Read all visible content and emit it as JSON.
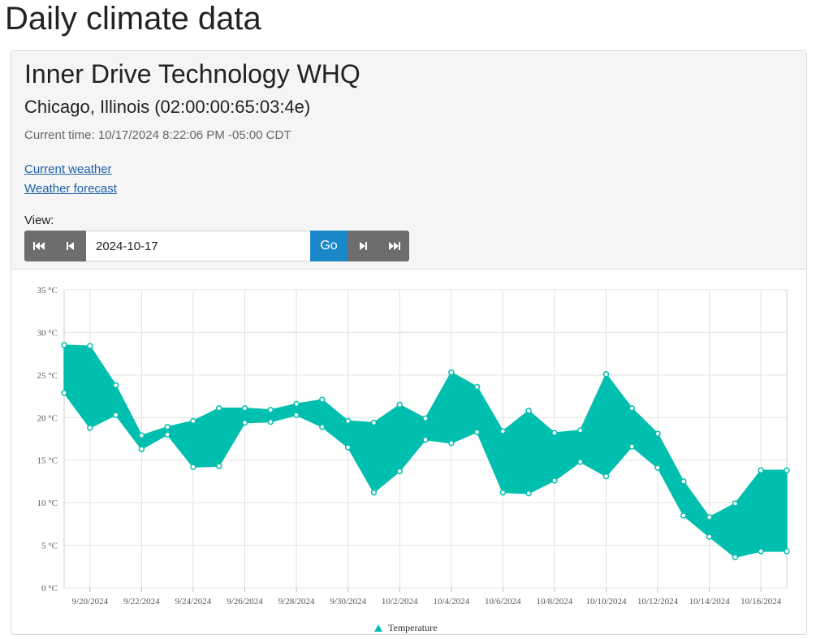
{
  "page": {
    "title": "Daily climate data"
  },
  "station": {
    "name": "Inner Drive Technology WHQ",
    "location": "Chicago, Illinois (02:00:00:65:03:4e)",
    "current_time": "Current time: 10/17/2024 8:22:06 PM -05:00 CDT"
  },
  "links": {
    "current_weather": "Current weather",
    "weather_forecast": "Weather forecast"
  },
  "view": {
    "label": "View:",
    "date_value": "2024-10-17",
    "go_label": "Go",
    "icons": [
      "first-page-icon",
      "previous-icon",
      "next-icon",
      "last-page-icon"
    ]
  },
  "colors": {
    "series": "#00bfae",
    "accent": "#1a87c9",
    "nav": "#6d6d6d",
    "link": "#1a5fa8"
  },
  "chart_data": {
    "type": "area",
    "subtype": "range",
    "x": [
      "9/19/2024",
      "9/20/2024",
      "9/21/2024",
      "9/22/2024",
      "9/23/2024",
      "9/24/2024",
      "9/25/2024",
      "9/26/2024",
      "9/27/2024",
      "9/28/2024",
      "9/29/2024",
      "9/30/2024",
      "10/1/2024",
      "10/2/2024",
      "10/3/2024",
      "10/4/2024",
      "10/5/2024",
      "10/6/2024",
      "10/7/2024",
      "10/8/2024",
      "10/9/2024",
      "10/10/2024",
      "10/11/2024",
      "10/12/2024",
      "10/13/2024",
      "10/14/2024",
      "10/15/2024",
      "10/16/2024",
      "10/17/2024"
    ],
    "x_tick_labels": [
      "9/20/2024",
      "9/22/2024",
      "9/24/2024",
      "9/26/2024",
      "9/28/2024",
      "9/30/2024",
      "10/2/2024",
      "10/4/2024",
      "10/6/2024",
      "10/8/2024",
      "10/10/2024",
      "10/12/2024",
      "10/14/2024",
      "10/16/2024"
    ],
    "series": [
      {
        "name": "Temperature",
        "high": [
          28.5,
          28.4,
          23.8,
          17.9,
          18.9,
          19.6,
          21.1,
          21.1,
          20.9,
          21.6,
          22.1,
          19.6,
          19.4,
          21.5,
          19.9,
          25.3,
          23.6,
          18.4,
          20.8,
          18.2,
          18.5,
          25.1,
          21.1,
          18.1,
          12.5,
          8.3,
          9.9,
          13.8,
          13.8
        ],
        "low": [
          22.9,
          18.8,
          20.3,
          16.3,
          18.0,
          14.2,
          14.3,
          19.4,
          19.5,
          20.3,
          18.9,
          16.5,
          11.2,
          13.7,
          17.4,
          17.0,
          18.3,
          11.2,
          11.1,
          12.6,
          14.8,
          13.1,
          16.6,
          14.1,
          8.5,
          6.0,
          3.6,
          4.3,
          4.3
        ]
      }
    ],
    "y_tick_labels": [
      "0 °C",
      "5 °C",
      "10 °C",
      "15 °C",
      "20 °C",
      "25 °C",
      "30 °C",
      "35 °C"
    ],
    "ylim": [
      0,
      35
    ],
    "ylabel_unit": "°C",
    "grid": true,
    "legend": "bottom"
  }
}
